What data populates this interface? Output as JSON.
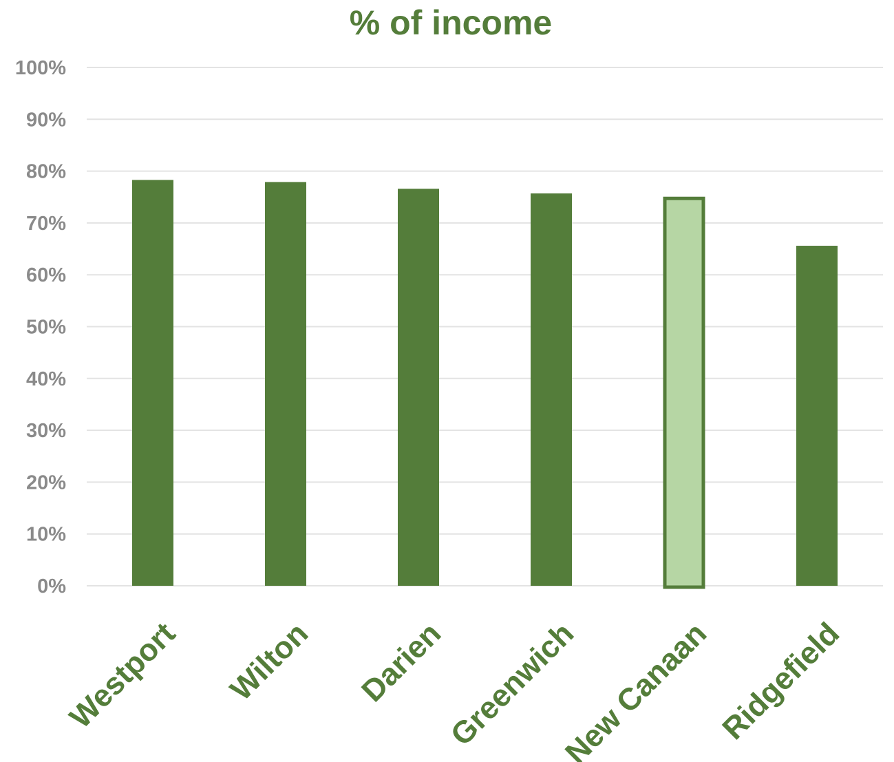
{
  "chart_data": {
    "type": "bar",
    "title": "% of income",
    "xlabel": "",
    "ylabel": "",
    "categories": [
      "Westport",
      "Wilton",
      "Darien",
      "Greenwich",
      "New Canaan",
      "Ridgefield"
    ],
    "values": [
      78.3,
      77.9,
      76.6,
      75.7,
      75.0,
      65.6
    ],
    "value_unit": "percent",
    "highlighted_category": "New Canaan",
    "ylim": [
      0,
      100
    ],
    "y_ticks": [
      "0%",
      "10%",
      "20%",
      "30%",
      "40%",
      "50%",
      "60%",
      "70%",
      "80%",
      "90%",
      "100%"
    ],
    "grid": true,
    "legend": "none",
    "colors": {
      "bar": "#547d3a",
      "highlight_fill": "#b6d6a4",
      "highlight_stroke": "#547d3a",
      "title": "#547d3a",
      "category_label": "#547d3a",
      "tick_label": "#8a8a8a",
      "grid": "#e3e3e3"
    }
  }
}
